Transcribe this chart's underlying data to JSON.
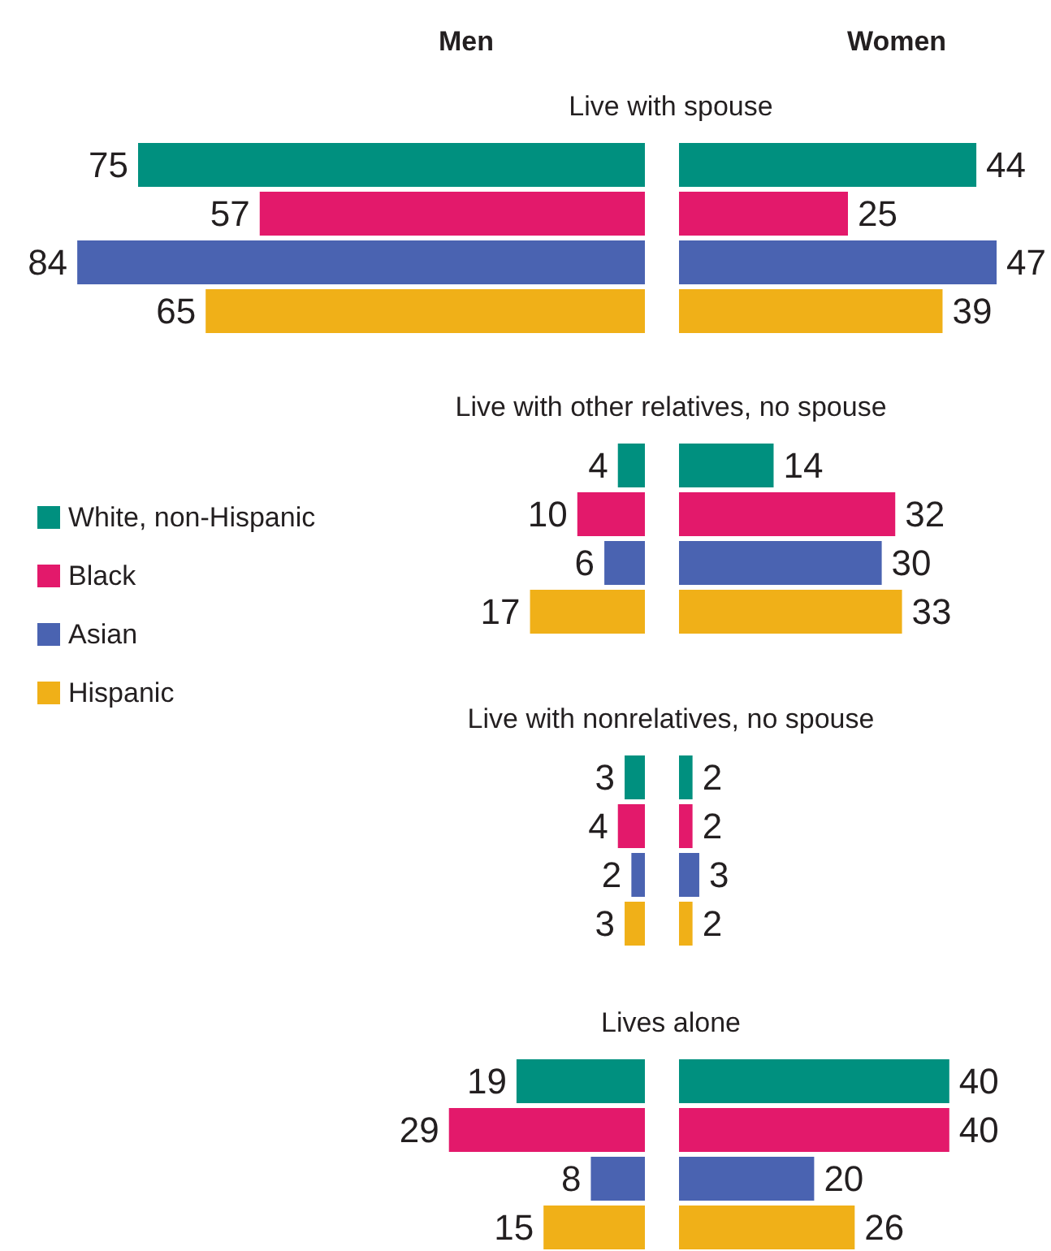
{
  "chart_data": [
    {
      "type": "bar",
      "orientation": "horizontal",
      "title": "Men",
      "subtitle": "Live with spouse",
      "categories": [
        null
      ],
      "tick_labels": false,
      "data_labels": true,
      "series": [
        {
          "color": "#00907f",
          "values": [
            75
          ]
        },
        {
          "color": "#e3196b",
          "values": [
            57
          ]
        },
        {
          "color": "#4a63b1",
          "values": [
            84
          ]
        },
        {
          "color": "#f0b018",
          "values": [
            65
          ]
        }
      ]
    },
    {
      "type": "bar",
      "orientation": "horizontal",
      "title": "Women",
      "categories": [
        null
      ],
      "tick_labels": false,
      "data_labels": true,
      "series": [
        {
          "color": "#00907f",
          "values": [
            44
          ]
        },
        {
          "color": "#e3196b",
          "values": [
            25
          ]
        },
        {
          "color": "#4a63b1",
          "values": [
            47
          ]
        },
        {
          "color": "#f0b018",
          "values": [
            39
          ]
        }
      ]
    },
    {
      "type": "bar",
      "orientation": "horizontal",
      "subtitle": "Live with other relatives, no spouse",
      "categories": [
        null
      ],
      "tick_labels": false,
      "data_labels": true,
      "legend": "left",
      "series": [
        {
          "name": "White, non-Hispanic",
          "color": "#00907f",
          "values": [
            4
          ]
        },
        {
          "name": "Black",
          "color": "#e3196b",
          "values": [
            10
          ]
        },
        {
          "name": "Asian",
          "color": "#4a63b1",
          "values": [
            6
          ]
        },
        {
          "name": "Hispanic",
          "color": "#f0b018",
          "values": [
            17
          ]
        }
      ]
    },
    {
      "type": "bar",
      "orientation": "horizontal",
      "categories": [
        null
      ],
      "tick_labels": false,
      "data_labels": true,
      "series": [
        {
          "color": "#00907f",
          "values": [
            14
          ]
        },
        {
          "color": "#e3196b",
          "values": [
            32
          ]
        },
        {
          "color": "#4a63b1",
          "values": [
            30
          ]
        },
        {
          "color": "#f0b018",
          "values": [
            33
          ]
        }
      ]
    },
    {
      "type": "bar",
      "orientation": "horizontal",
      "subtitle": "Live with nonrelatives, no spouse",
      "categories": [
        null
      ],
      "tick_labels": false,
      "data_labels": true,
      "series": [
        {
          "color": "#00907f",
          "values": [
            3
          ]
        },
        {
          "color": "#e3196b",
          "values": [
            4
          ]
        },
        {
          "color": "#4a63b1",
          "values": [
            2
          ]
        },
        {
          "color": "#f0b018",
          "values": [
            3
          ]
        }
      ]
    },
    {
      "type": "bar",
      "orientation": "horizontal",
      "categories": [
        null
      ],
      "tick_labels": false,
      "data_labels": true,
      "series": [
        {
          "color": "#00907f",
          "values": [
            2
          ]
        },
        {
          "color": "#e3196b",
          "values": [
            2
          ]
        },
        {
          "color": "#4a63b1",
          "values": [
            3
          ]
        },
        {
          "color": "#f0b018",
          "values": [
            2
          ]
        }
      ]
    },
    {
      "type": "bar",
      "orientation": "horizontal",
      "subtitle": "Lives alone",
      "categories": [
        null
      ],
      "tick_labels": false,
      "data_labels": true,
      "series": [
        {
          "color": "#00907f",
          "values": [
            19
          ]
        },
        {
          "color": "#e3196b",
          "values": [
            29
          ]
        },
        {
          "color": "#4a63b1",
          "values": [
            8
          ]
        },
        {
          "color": "#f0b018",
          "values": [
            15
          ]
        }
      ]
    },
    {
      "type": "bar",
      "orientation": "horizontal",
      "categories": [
        null
      ],
      "tick_labels": false,
      "data_labels": true,
      "series": [
        {
          "color": "#00907f",
          "values": [
            40
          ]
        },
        {
          "color": "#e3196b",
          "values": [
            40
          ]
        },
        {
          "color": "#4a63b1",
          "values": [
            20
          ]
        },
        {
          "color": "#f0b018",
          "values": [
            26
          ]
        }
      ]
    }
  ]
}
